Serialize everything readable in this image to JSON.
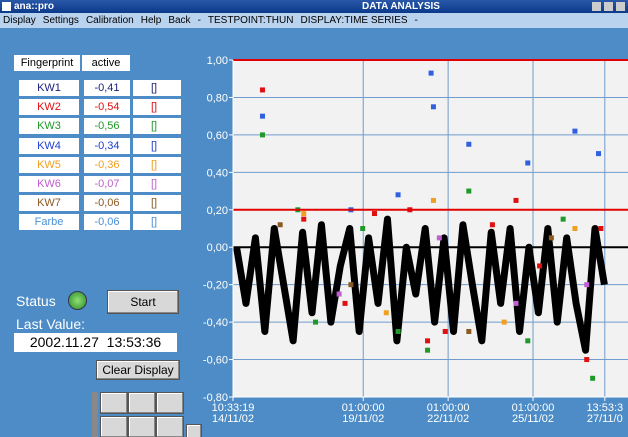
{
  "window": {
    "app": "ana::pro",
    "title": "DATA ANALYSIS"
  },
  "menu": [
    "Display",
    "Settings",
    "Calibration",
    "Help",
    "Back",
    "-",
    "TESTPOINT:THUN",
    "DISPLAY:TIME SERIES",
    "-"
  ],
  "table": {
    "header": [
      "Fingerprint",
      "active"
    ],
    "rows": [
      {
        "name": "KW1",
        "value": "-0,41",
        "active": "[]",
        "color": "#1a1f7a"
      },
      {
        "name": "KW2",
        "value": "-0,54",
        "active": "[]",
        "color": "#e01010"
      },
      {
        "name": "KW3",
        "value": "-0,56",
        "active": "[]",
        "color": "#1f9a2a"
      },
      {
        "name": "KW4",
        "value": "-0,34",
        "active": "[]",
        "color": "#1f3fd0"
      },
      {
        "name": "KW5",
        "value": "-0,36",
        "active": "[]",
        "color": "#f0a020"
      },
      {
        "name": "KW6",
        "value": "-0,07",
        "active": "[]",
        "color": "#c060d0"
      },
      {
        "name": "KW7",
        "value": "-0,06",
        "active": "[]",
        "color": "#8a5a20"
      },
      {
        "name": "Farbe",
        "value": "-0,06",
        "active": "[]",
        "color": "#4a90d8"
      }
    ]
  },
  "status": {
    "label": "Status",
    "button": "Start",
    "last_value_label": "Last Value:",
    "last_value": "2002.11.27  13:53:36",
    "clear": "Clear Display"
  },
  "chart_data": {
    "type": "scatter",
    "ylim": [
      -0.8,
      1.0
    ],
    "yticks": [
      {
        "value": -0.8,
        "label": "-0,80"
      },
      {
        "value": -0.6,
        "label": "-0,60"
      },
      {
        "value": -0.4,
        "label": "-0,40"
      },
      {
        "value": -0.2,
        "label": "-0,20"
      },
      {
        "value": 0,
        "label": "0,00"
      },
      {
        "value": 0.2,
        "label": "0,20"
      },
      {
        "value": 0.4,
        "label": "0,40"
      },
      {
        "value": 0.6,
        "label": "0,60"
      },
      {
        "value": 0.8,
        "label": "0,80"
      },
      {
        "value": 1.0,
        "label": "1,00"
      }
    ],
    "xlim": [
      0,
      335
    ],
    "xticks": [
      {
        "value": 0,
        "label": "10:33:19\n14/11/02"
      },
      {
        "value": 110.45,
        "label": "01:00:00\n19/11/02"
      },
      {
        "value": 182.45,
        "label": "01:00:00\n22/11/02"
      },
      {
        "value": 254.45,
        "label": "01:00:00\n25/11/02"
      },
      {
        "value": 315.33,
        "label": "13:53:3\n27/11/0"
      }
    ],
    "grid": true,
    "hlines": [
      {
        "value": 1.0,
        "color": "#e00000"
      },
      {
        "value": 0.2,
        "color": "#e00000"
      },
      {
        "value": 0,
        "color": "#000000"
      }
    ],
    "series": [
      {
        "color": "#000000",
        "line": true,
        "x": [
          3,
          11,
          19,
          27,
          35,
          43,
          51,
          59,
          67,
          75,
          83,
          91,
          99,
          107,
          115,
          123,
          131,
          139,
          147,
          155,
          163,
          171,
          179,
          187,
          195,
          203,
          211,
          219,
          227,
          235,
          243,
          251,
          259,
          267,
          275,
          283,
          291,
          299,
          307,
          315
        ],
        "values": [
          0.0,
          -0.3,
          0.05,
          -0.45,
          0.1,
          -0.2,
          -0.5,
          0.08,
          -0.35,
          0.12,
          -0.4,
          -0.1,
          0.1,
          -0.45,
          0.05,
          -0.3,
          0.15,
          -0.5,
          0.0,
          -0.25,
          0.1,
          -0.4,
          0.05,
          -0.45,
          0.12,
          -0.2,
          -0.5,
          0.08,
          -0.3,
          0.1,
          -0.45,
          0.0,
          -0.35,
          0.1,
          -0.4,
          0.05,
          -0.3,
          -0.55,
          0.1,
          -0.2
        ]
      },
      {
        "color": "#e01010",
        "x": [
          25,
          60,
          95,
          150,
          165,
          240,
          260,
          300,
          312,
          120,
          180,
          220
        ],
        "values": [
          0.84,
          0.15,
          -0.3,
          0.2,
          -0.5,
          0.25,
          -0.1,
          -0.6,
          0.1,
          0.18,
          -0.45,
          0.12
        ]
      },
      {
        "color": "#1f9a2a",
        "x": [
          25,
          70,
          110,
          165,
          200,
          250,
          280,
          305,
          140,
          55
        ],
        "values": [
          0.6,
          -0.4,
          0.1,
          -0.55,
          0.3,
          -0.5,
          0.15,
          -0.7,
          -0.45,
          0.2
        ]
      },
      {
        "color": "#3060e0",
        "x": [
          168,
          170,
          25,
          200,
          250,
          290,
          310,
          100,
          140
        ],
        "values": [
          0.93,
          0.75,
          0.7,
          0.55,
          0.45,
          0.62,
          0.5,
          0.2,
          0.28
        ]
      },
      {
        "color": "#f0a020",
        "x": [
          60,
          130,
          170,
          230,
          290
        ],
        "values": [
          0.18,
          -0.35,
          0.25,
          -0.4,
          0.1
        ]
      },
      {
        "color": "#c060d0",
        "x": [
          90,
          175,
          240,
          300
        ],
        "values": [
          -0.25,
          0.05,
          -0.3,
          -0.2
        ]
      },
      {
        "color": "#8a5a20",
        "x": [
          40,
          100,
          200,
          270
        ],
        "values": [
          0.12,
          -0.2,
          -0.45,
          0.05
        ]
      }
    ]
  }
}
